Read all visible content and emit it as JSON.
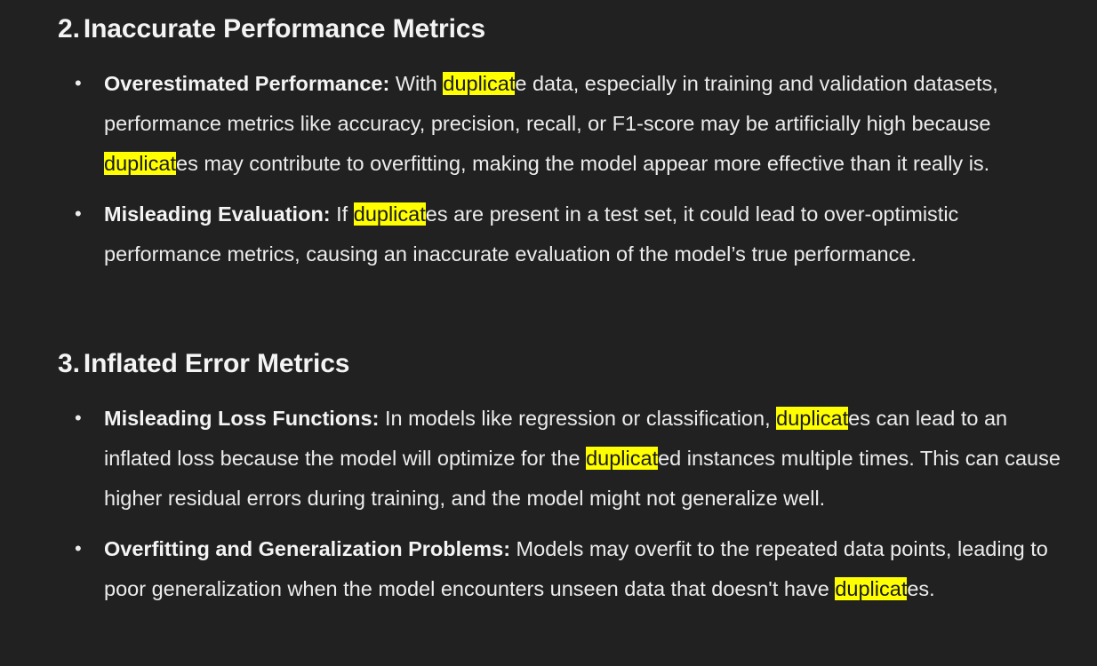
{
  "sections": [
    {
      "number": "2.",
      "title": "Inaccurate Performance Metrics",
      "items": [
        {
          "term": "Overestimated Performance:",
          "parts": [
            " With ",
            "duplicat",
            "e data, especially in training and validation datasets, performance metrics like accuracy, precision, recall, or F1-score may be artificially high because ",
            "duplicat",
            "es may contribute to overfitting, making the model appear more effective than it really is."
          ]
        },
        {
          "term": "Misleading Evaluation:",
          "parts": [
            " If ",
            "duplicat",
            "es are present in a test set, it could lead to over-optimistic performance metrics, causing an inaccurate evaluation of the model’s true performance."
          ]
        }
      ]
    },
    {
      "number": "3.",
      "title": "Inflated Error Metrics",
      "items": [
        {
          "term": "Misleading Loss Functions:",
          "parts": [
            " In models like regression or classification, ",
            "duplicat",
            "es can lead to an inflated loss because the model will optimize for the ",
            "duplicat",
            "ed instances multiple times. This can cause higher residual errors during training, and the model might not generalize well."
          ]
        },
        {
          "term": "Overfitting and Generalization Problems:",
          "parts": [
            " Models may overfit to the repeated data points, leading to poor generalization when the model encounters unseen data that doesn't have ",
            "duplicat",
            "es."
          ]
        }
      ]
    }
  ],
  "bullet": "•",
  "highlight_color": "#ffff00",
  "background_color": "#212121",
  "text_color": "#ececec"
}
